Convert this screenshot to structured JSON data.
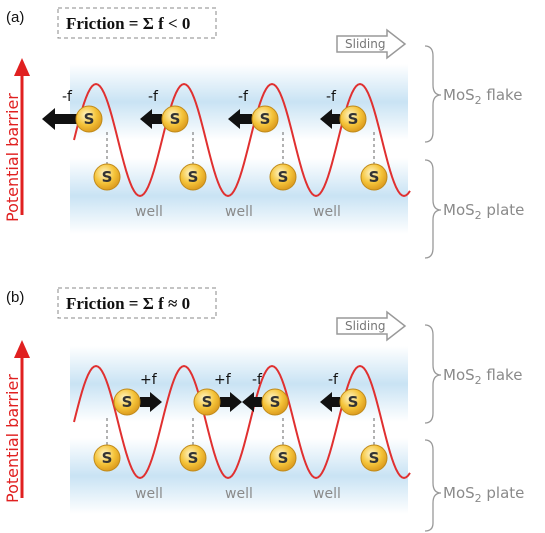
{
  "panels": [
    {
      "label": "(a)",
      "friction": "Friction = Σ f < 0",
      "sliding": "Sliding",
      "barrier": "Potential barrier",
      "flake_label": "MoS2 flake",
      "plate_label": "MoS2 plate",
      "atom_label": "S",
      "wells": [
        "well",
        "well",
        "well"
      ],
      "forces": [
        "-f",
        "-f",
        "-f",
        "-f"
      ]
    },
    {
      "label": "(b)",
      "friction": "Friction = Σ f ≈ 0",
      "sliding": "Sliding",
      "barrier": "Potential barrier",
      "flake_label": "MoS2 flake",
      "plate_label": "MoS2 plate",
      "atom_label": "S",
      "wells": [
        "well",
        "well",
        "well"
      ],
      "forces": [
        "+f",
        "+f",
        "-f",
        "-f"
      ]
    }
  ],
  "colors": {
    "wave": "#e03030",
    "barrier_arrow": "#e02020",
    "layer_band": "#cfe6f5",
    "atom_fill": "#f2b92c",
    "force_arrow": "#111111"
  }
}
